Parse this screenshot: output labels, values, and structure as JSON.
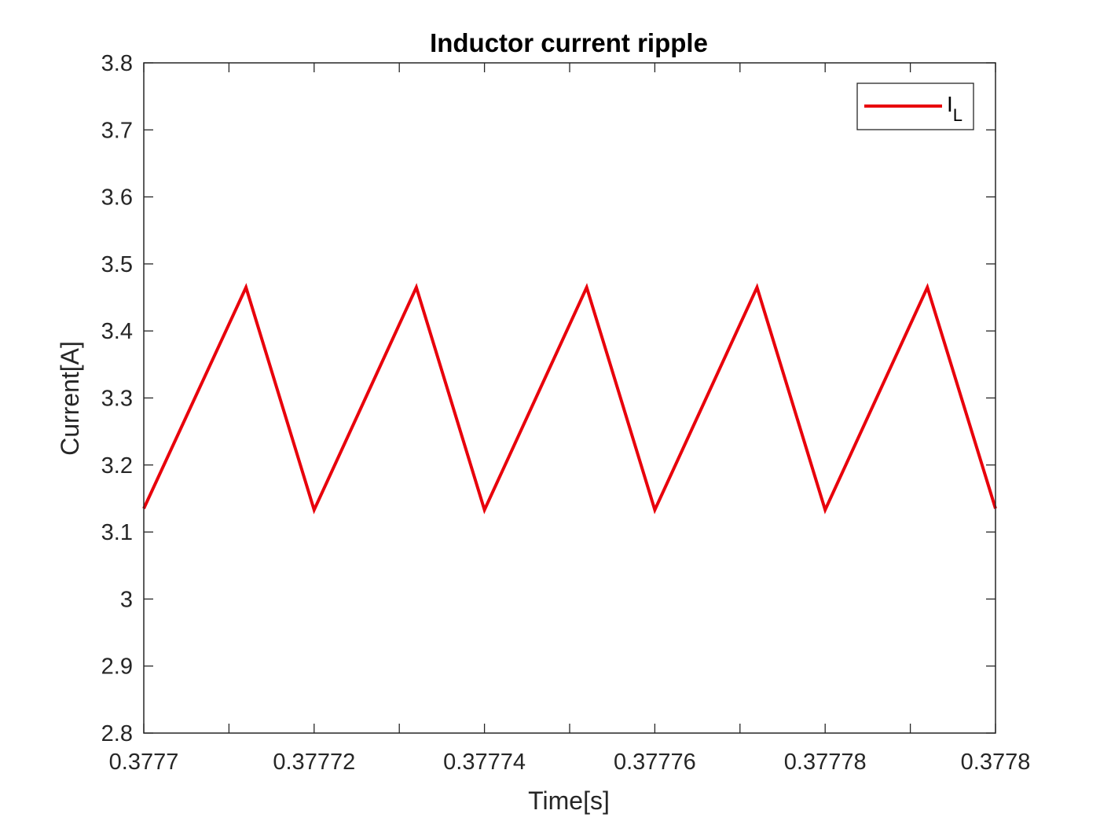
{
  "chart_data": {
    "type": "line",
    "title": "Inductor current ripple",
    "xlabel": "Time[s]",
    "ylabel": "Current[A]",
    "xlim": [
      0.3777,
      0.3778
    ],
    "ylim": [
      2.8,
      3.8
    ],
    "x_ticks": [
      0.3777,
      0.37772,
      0.37774,
      0.37776,
      0.37778,
      0.3778
    ],
    "x_tick_labels": [
      "0.3777",
      "0.37772",
      "0.37774",
      "0.37776",
      "0.37778",
      "0.3778"
    ],
    "x_minor_ticks": [
      0.37771,
      0.37773,
      0.37775,
      0.37777,
      0.37779
    ],
    "y_ticks": [
      2.8,
      2.9,
      3.0,
      3.1,
      3.2,
      3.3,
      3.4,
      3.5,
      3.6,
      3.7,
      3.8
    ],
    "y_tick_labels": [
      "2.8",
      "2.9",
      "3",
      "3.1",
      "3.2",
      "3.3",
      "3.4",
      "3.5",
      "3.6",
      "3.7",
      "3.8"
    ],
    "grid": false,
    "legend_position": "top-right",
    "series": [
      {
        "name": "I_L",
        "legend_main": "I",
        "legend_sub": "L",
        "color": "#e8000b",
        "x": [
          0.3777,
          0.377712,
          0.37772,
          0.377732,
          0.37774,
          0.377752,
          0.37776,
          0.377772,
          0.37778,
          0.377792,
          0.3778
        ],
        "y": [
          3.135,
          3.465,
          3.133,
          3.465,
          3.133,
          3.465,
          3.133,
          3.465,
          3.133,
          3.465,
          3.135
        ]
      }
    ]
  }
}
